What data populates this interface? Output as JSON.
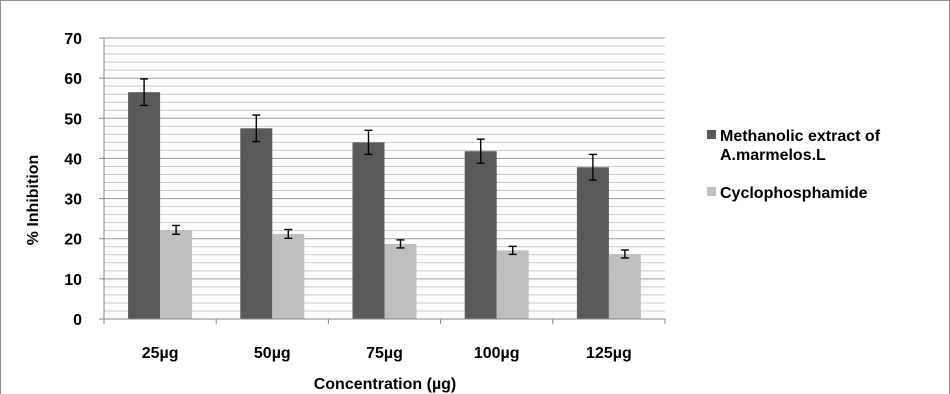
{
  "chart_data": {
    "type": "bar",
    "categories": [
      "25µg",
      "50µg",
      "75µg",
      "100µg",
      "125µg"
    ],
    "series": [
      {
        "name": "Methanolic extract of A.marmelos.L",
        "values": [
          56.5,
          47.5,
          44,
          41.8,
          37.8
        ],
        "errors": [
          3.3,
          3.3,
          3.0,
          3.0,
          3.2
        ],
        "color": "#595959"
      },
      {
        "name": "Cyclophosphamide",
        "values": [
          22.2,
          21.2,
          18.7,
          17.1,
          16.2
        ],
        "errors": [
          1.1,
          1.1,
          1.0,
          1.0,
          1.0
        ],
        "color": "#bfbfbf"
      }
    ],
    "title": "",
    "xlabel": "Concentration (µg)",
    "ylabel": "% Inhibition",
    "ylim": [
      0,
      70
    ],
    "yticks": [
      0,
      10,
      20,
      30,
      40,
      50,
      60,
      70
    ],
    "legend_lines": [
      [
        "Methanolic extract of",
        "A.marmelos.L"
      ],
      [
        "Cyclophosphamide"
      ]
    ],
    "grid": true,
    "legend_position": "right"
  }
}
